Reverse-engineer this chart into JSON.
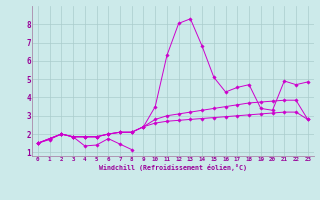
{
  "xlabel": "Windchill (Refroidissement éolien,°C)",
  "bg_color": "#cceaea",
  "line_color": "#cc00cc",
  "grid_color": "#aacccc",
  "xlim": [
    -0.5,
    23.5
  ],
  "ylim": [
    0.8,
    9.0
  ],
  "xticks": [
    0,
    1,
    2,
    3,
    4,
    5,
    6,
    7,
    8,
    9,
    10,
    11,
    12,
    13,
    14,
    15,
    16,
    17,
    18,
    19,
    20,
    21,
    22,
    23
  ],
  "yticks": [
    1,
    2,
    3,
    4,
    5,
    6,
    7,
    8
  ],
  "series": [
    {
      "x": [
        0,
        1,
        2,
        3,
        4,
        5,
        6,
        7,
        8
      ],
      "y": [
        1.5,
        1.7,
        2.0,
        1.85,
        1.35,
        1.4,
        1.75,
        1.45,
        1.15
      ]
    },
    {
      "x": [
        0,
        1,
        2,
        3,
        4,
        5,
        6,
        7,
        8,
        9,
        10,
        11,
        12,
        13,
        14,
        15,
        16,
        17,
        18,
        19,
        20,
        21,
        22,
        23
      ],
      "y": [
        1.5,
        1.75,
        2.0,
        1.85,
        1.85,
        1.85,
        2.0,
        2.1,
        2.1,
        2.4,
        3.5,
        6.3,
        8.05,
        8.3,
        6.8,
        5.1,
        4.3,
        4.55,
        4.7,
        3.4,
        3.3,
        4.9,
        4.7,
        4.85
      ]
    },
    {
      "x": [
        0,
        1,
        2,
        3,
        4,
        5,
        6,
        7,
        8,
        9,
        10,
        11,
        12,
        13,
        14,
        15,
        16,
        17,
        18,
        19,
        20,
        21,
        22,
        23
      ],
      "y": [
        1.5,
        1.75,
        2.0,
        1.85,
        1.85,
        1.85,
        2.0,
        2.1,
        2.1,
        2.4,
        2.8,
        3.0,
        3.1,
        3.2,
        3.3,
        3.4,
        3.5,
        3.6,
        3.7,
        3.75,
        3.8,
        3.85,
        3.85,
        2.8
      ]
    },
    {
      "x": [
        0,
        1,
        2,
        3,
        4,
        5,
        6,
        7,
        8,
        9,
        10,
        11,
        12,
        13,
        14,
        15,
        16,
        17,
        18,
        19,
        20,
        21,
        22,
        23
      ],
      "y": [
        1.5,
        1.75,
        2.0,
        1.85,
        1.85,
        1.85,
        2.0,
        2.1,
        2.1,
        2.4,
        2.6,
        2.7,
        2.75,
        2.8,
        2.85,
        2.9,
        2.95,
        3.0,
        3.05,
        3.1,
        3.15,
        3.2,
        3.2,
        2.8
      ]
    }
  ]
}
